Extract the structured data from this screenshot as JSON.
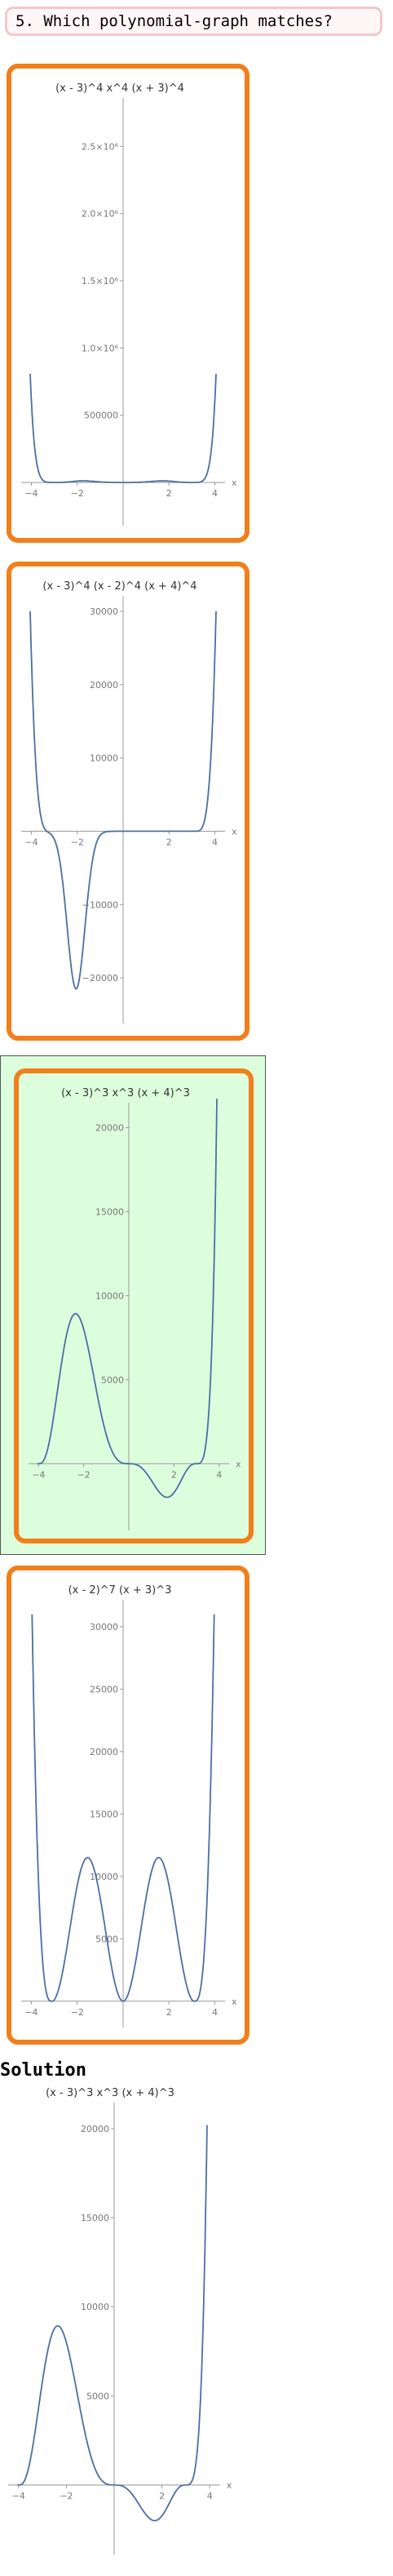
{
  "question": {
    "number_label": "5.",
    "text": "Which polynomial-graph matches?"
  },
  "options": [
    {
      "id": "A",
      "title_latex": "(x-3)^4 x^4 (x+3)^4",
      "chart_data": {
        "type": "line",
        "title": "(x - 3)^4 x^4 (x + 3)^4",
        "xlabel": "x",
        "ylabel": "",
        "xlim": [
          -4.3,
          4.3
        ],
        "ylim": [
          -200000,
          2800000
        ],
        "xticks": [
          -4,
          -2,
          2,
          4
        ],
        "yticks": [
          500000,
          1000000,
          1500000,
          2000000,
          2500000
        ],
        "ytick_labels": [
          "500000",
          "1.0×10^6",
          "1.5×10^6",
          "2.0×10^6",
          "2.5×10^6"
        ],
        "series": [
          {
            "expr": "(x-3)^4*x^4*(x+3)^4"
          }
        ]
      }
    },
    {
      "id": "B",
      "title_latex": "(x-3)^4 (x-2)^4 (x+4)^4",
      "chart_data": {
        "type": "line",
        "title": "(x - 3)^4 (x - 2)^4 (x + 4)^4",
        "xlabel": "x",
        "ylabel": "",
        "xlim": [
          -4.3,
          4.3
        ],
        "ylim": [
          -24000,
          31000
        ],
        "xticks": [
          -4,
          -2,
          2,
          4
        ],
        "yticks": [
          -20000,
          -10000,
          10000,
          20000,
          30000
        ],
        "ytick_labels": [
          "-20000",
          "-10000",
          "10000",
          "20000",
          "30000"
        ],
        "series": [
          {
            "expr": "shapeB"
          }
        ]
      }
    },
    {
      "id": "C",
      "title_latex": "(x-3)^3 x^3 (x+4)^3",
      "selected": true,
      "chart_data": {
        "type": "line",
        "title": "(x - 3)^3 x^3 (x + 4)^3",
        "xlabel": "x",
        "ylabel": "",
        "xlim": [
          -4.3,
          4.3
        ],
        "ylim": [
          -3000,
          21000
        ],
        "xticks": [
          -4,
          -2,
          2,
          4
        ],
        "yticks": [
          5000,
          10000,
          15000,
          20000
        ],
        "ytick_labels": [
          "5000",
          "10000",
          "15000",
          "20000"
        ],
        "series": [
          {
            "expr": "(x-3)^3*x^3*(x+4)^3"
          }
        ]
      }
    },
    {
      "id": "D",
      "title_latex": "(x-2)^7 (x+3)^3",
      "chart_data": {
        "type": "line",
        "title": "(x - 2)^7 (x + 3)^3",
        "xlabel": "x",
        "ylabel": "",
        "xlim": [
          -4.3,
          4.3
        ],
        "ylim": [
          -800,
          31500
        ],
        "xticks": [
          -4,
          -2,
          2,
          4
        ],
        "yticks": [
          5000,
          10000,
          15000,
          20000,
          25000,
          30000
        ],
        "ytick_labels": [
          "5000",
          "10000",
          "15000",
          "20000",
          "25000",
          "30000"
        ],
        "series": [
          {
            "expr": "shapeD"
          }
        ]
      }
    }
  ],
  "solution": {
    "label": "Solution",
    "chart_data": {
      "type": "line",
      "title": "(x - 3)^3 x^3 (x + 4)^3",
      "xlabel": "x",
      "ylabel": "",
      "xlim": [
        -4.3,
        4.3
      ],
      "ylim": [
        -3000,
        21000
      ],
      "xticks": [
        -4,
        -2,
        2,
        4
      ],
      "yticks": [
        5000,
        10000,
        15000,
        20000
      ],
      "ytick_labels": [
        "5000",
        "10000",
        "15000",
        "20000"
      ],
      "series": [
        {
          "expr": "(x-3)^3*x^3*(x+4)^3"
        }
      ]
    }
  },
  "colors": {
    "curve": "#4a6fa5",
    "axis": "#999999",
    "tick_text": "#777777",
    "border": "#f07f1c",
    "selected_bg": "#ddfedd"
  }
}
